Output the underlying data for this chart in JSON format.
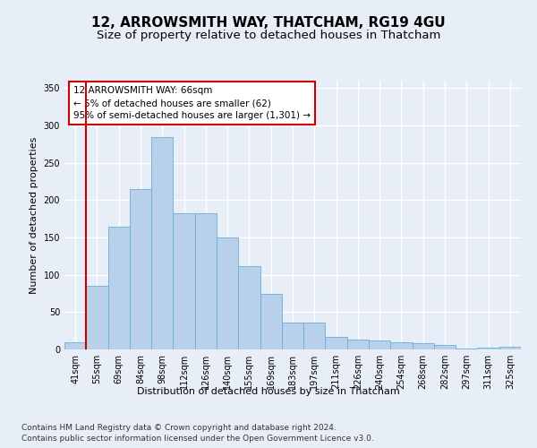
{
  "title": "12, ARROWSMITH WAY, THATCHAM, RG19 4GU",
  "subtitle": "Size of property relative to detached houses in Thatcham",
  "xlabel": "Distribution of detached houses by size in Thatcham",
  "ylabel": "Number of detached properties",
  "categories": [
    "41sqm",
    "55sqm",
    "69sqm",
    "84sqm",
    "98sqm",
    "112sqm",
    "126sqm",
    "140sqm",
    "155sqm",
    "169sqm",
    "183sqm",
    "197sqm",
    "211sqm",
    "226sqm",
    "240sqm",
    "254sqm",
    "268sqm",
    "282sqm",
    "297sqm",
    "311sqm",
    "325sqm"
  ],
  "values": [
    10,
    85,
    165,
    215,
    285,
    182,
    182,
    150,
    112,
    75,
    36,
    36,
    17,
    13,
    12,
    10,
    8,
    6,
    1,
    2,
    4
  ],
  "bar_color": "#b8d0ea",
  "bar_edge_color": "#6aaed6",
  "red_line_x": 1.5,
  "annotation_line1": "12 ARROWSMITH WAY: 66sqm",
  "annotation_line2": "← 5% of detached houses are smaller (62)",
  "annotation_line3": "95% of semi-detached houses are larger (1,301) →",
  "annotation_box_color": "#ffffff",
  "annotation_box_edge_color": "#cc0000",
  "footnote1": "Contains HM Land Registry data © Crown copyright and database right 2024.",
  "footnote2": "Contains public sector information licensed under the Open Government Licence v3.0.",
  "ylim": [
    0,
    360
  ],
  "yticks": [
    0,
    50,
    100,
    150,
    200,
    250,
    300,
    350
  ],
  "background_color": "#e8eef8",
  "plot_background_color": "#e8eef8",
  "grid_color": "#ffffff",
  "title_fontsize": 11,
  "subtitle_fontsize": 9.5,
  "axis_label_fontsize": 8,
  "tick_fontsize": 7,
  "annotation_fontsize": 7.5,
  "footnote_fontsize": 6.5
}
